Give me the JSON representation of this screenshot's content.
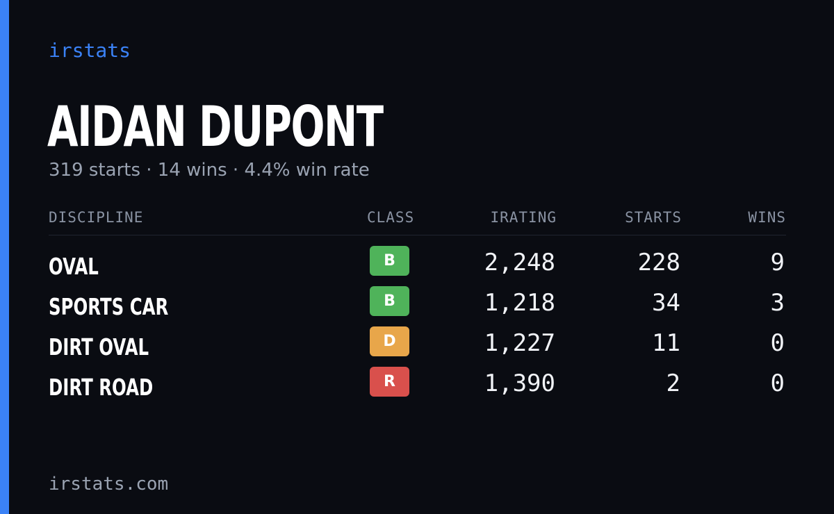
{
  "brand": "irstats",
  "driver": {
    "name": "AIDAN DUPONT",
    "summary": "319 starts · 14 wins · 4.4% win rate"
  },
  "table": {
    "headers": {
      "discipline": "DISCIPLINE",
      "class": "CLASS",
      "irating": "IRATING",
      "starts": "STARTS",
      "wins": "WINS"
    },
    "rows": [
      {
        "discipline": "OVAL",
        "class": "B",
        "irating": "2,248",
        "starts": "228",
        "wins": "9"
      },
      {
        "discipline": "SPORTS CAR",
        "class": "B",
        "irating": "1,218",
        "starts": "34",
        "wins": "3"
      },
      {
        "discipline": "DIRT OVAL",
        "class": "D",
        "irating": "1,227",
        "starts": "11",
        "wins": "0"
      },
      {
        "discipline": "DIRT ROAD",
        "class": "R",
        "irating": "1,390",
        "starts": "2",
        "wins": "0"
      }
    ]
  },
  "class_colors": {
    "B": "#4fb35a",
    "D": "#e8a64a",
    "R": "#d9504c"
  },
  "accent_color": "#3b82f6",
  "footer": "irstats.com"
}
